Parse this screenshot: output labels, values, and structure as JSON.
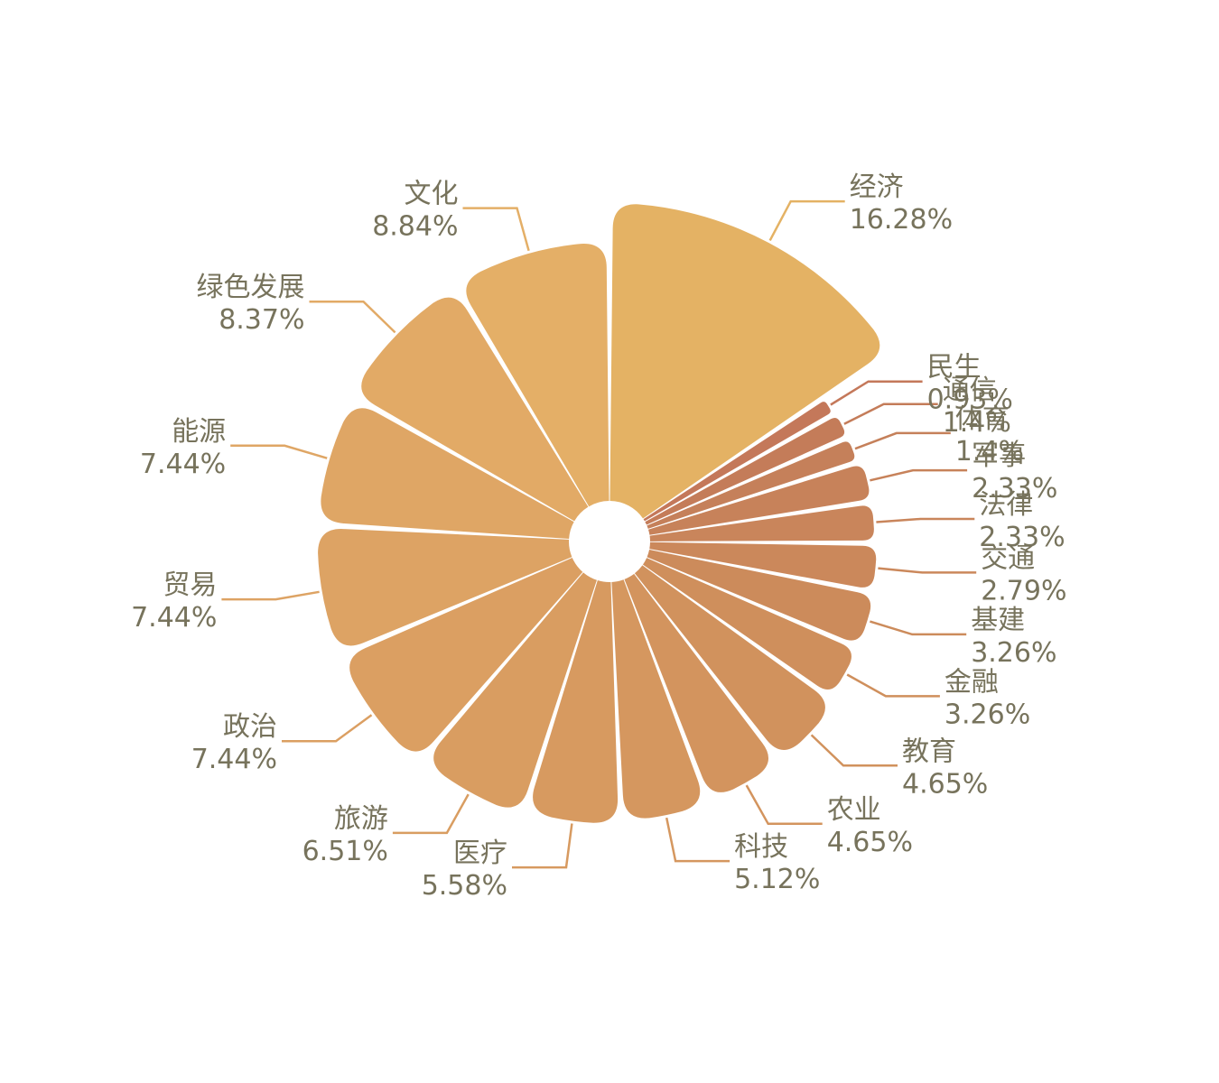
{
  "chart_data": {
    "type": "pie",
    "style": "nightingale-rose",
    "categories": [
      "经济",
      "民生",
      "通信",
      "体育",
      "军事",
      "法律",
      "交通",
      "基建",
      "金融",
      "教育",
      "农业",
      "科技",
      "医疗",
      "旅游",
      "政治",
      "贸易",
      "能源",
      "绿色发展",
      "文化"
    ],
    "values": [
      16.28,
      0.93,
      1.4,
      1.4,
      2.33,
      2.33,
      2.79,
      3.26,
      3.26,
      4.65,
      4.65,
      5.12,
      5.58,
      6.51,
      7.44,
      7.44,
      7.44,
      8.37,
      8.84
    ],
    "value_labels": [
      "16.28%",
      "0.93%",
      "1.4%",
      "1.4%",
      "2.33%",
      "2.33%",
      "2.79%",
      "3.26%",
      "3.26%",
      "4.65%",
      "4.65%",
      "5.12%",
      "5.58%",
      "6.51%",
      "7.44%",
      "7.44%",
      "7.44%",
      "8.37%",
      "8.84%"
    ],
    "colors": [
      "#e4b264",
      "#c4785a",
      "#c47c59",
      "#c5805a",
      "#c7825a",
      "#c9855b",
      "#cb885b",
      "#cc8b5b",
      "#cf8f5c",
      "#d1925d",
      "#d3945e",
      "#d5975f",
      "#d79a60",
      "#d99d61",
      "#db9f62",
      "#dda364",
      "#dfa665",
      "#e2aa66",
      "#e4af67"
    ],
    "legend": "none"
  }
}
